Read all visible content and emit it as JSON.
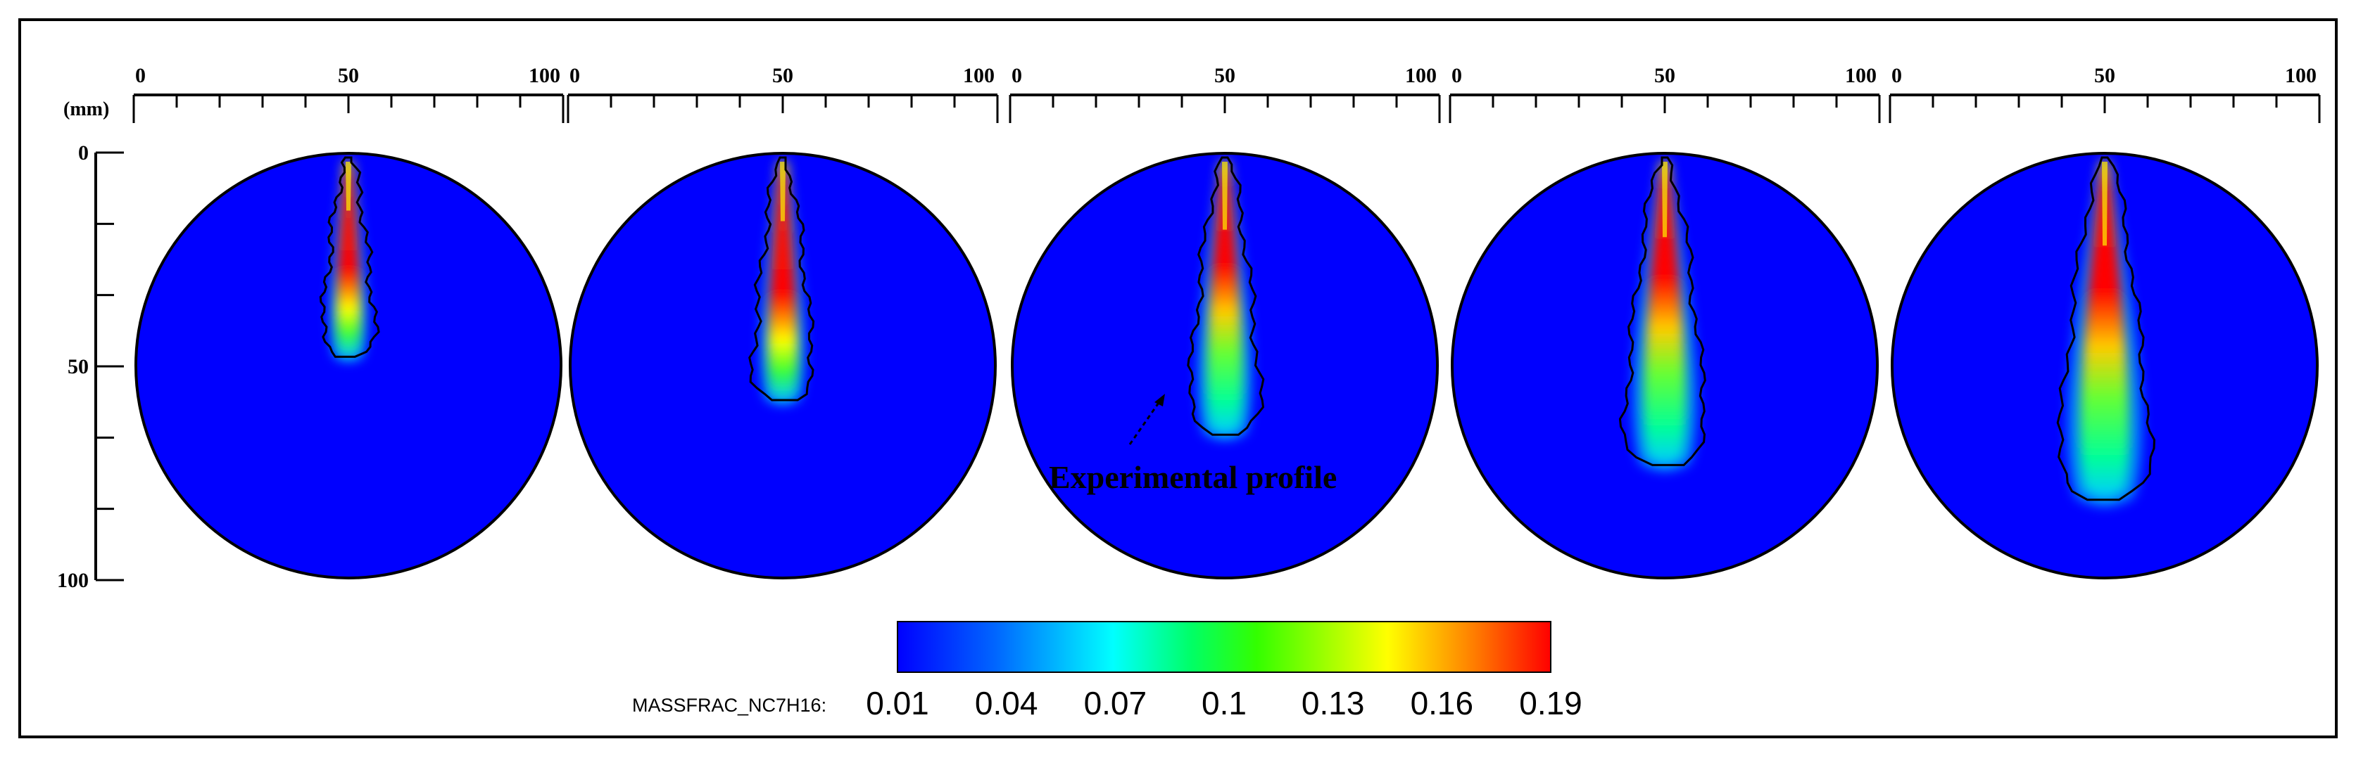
{
  "figure": {
    "unit_label": "(mm)",
    "x_ticks": [
      "0",
      "50",
      "100"
    ],
    "y_ticks": [
      "0",
      "50",
      "100"
    ],
    "annotation": "Experimental profile",
    "panel_count": 5
  },
  "colorbar": {
    "label": "MASSFRAC_NC7H16:",
    "ticks": [
      "0.01",
      "0.04",
      "0.07",
      "0.1",
      "0.13",
      "0.16",
      "0.19"
    ],
    "colors": [
      "#0000ff",
      "#0066ff",
      "#00ffff",
      "#00ff66",
      "#33ff00",
      "#ffff00",
      "#ff8000",
      "#ff0000"
    ]
  },
  "panels": [
    {
      "penetration": 0.46,
      "width": 0.075,
      "red_start": 0.25,
      "red_end": 0.44
    },
    {
      "penetration": 0.56,
      "width": 0.09,
      "red_start": 0.3,
      "red_end": 0.55
    },
    {
      "penetration": 0.64,
      "width": 0.11,
      "red_start": 0.22,
      "red_end": 0.52
    },
    {
      "penetration": 0.71,
      "width": 0.13,
      "red_start": 0.15,
      "red_end": 0.5
    },
    {
      "penetration": 0.79,
      "width": 0.15,
      "red_start": 0.15,
      "red_end": 0.5
    }
  ]
}
